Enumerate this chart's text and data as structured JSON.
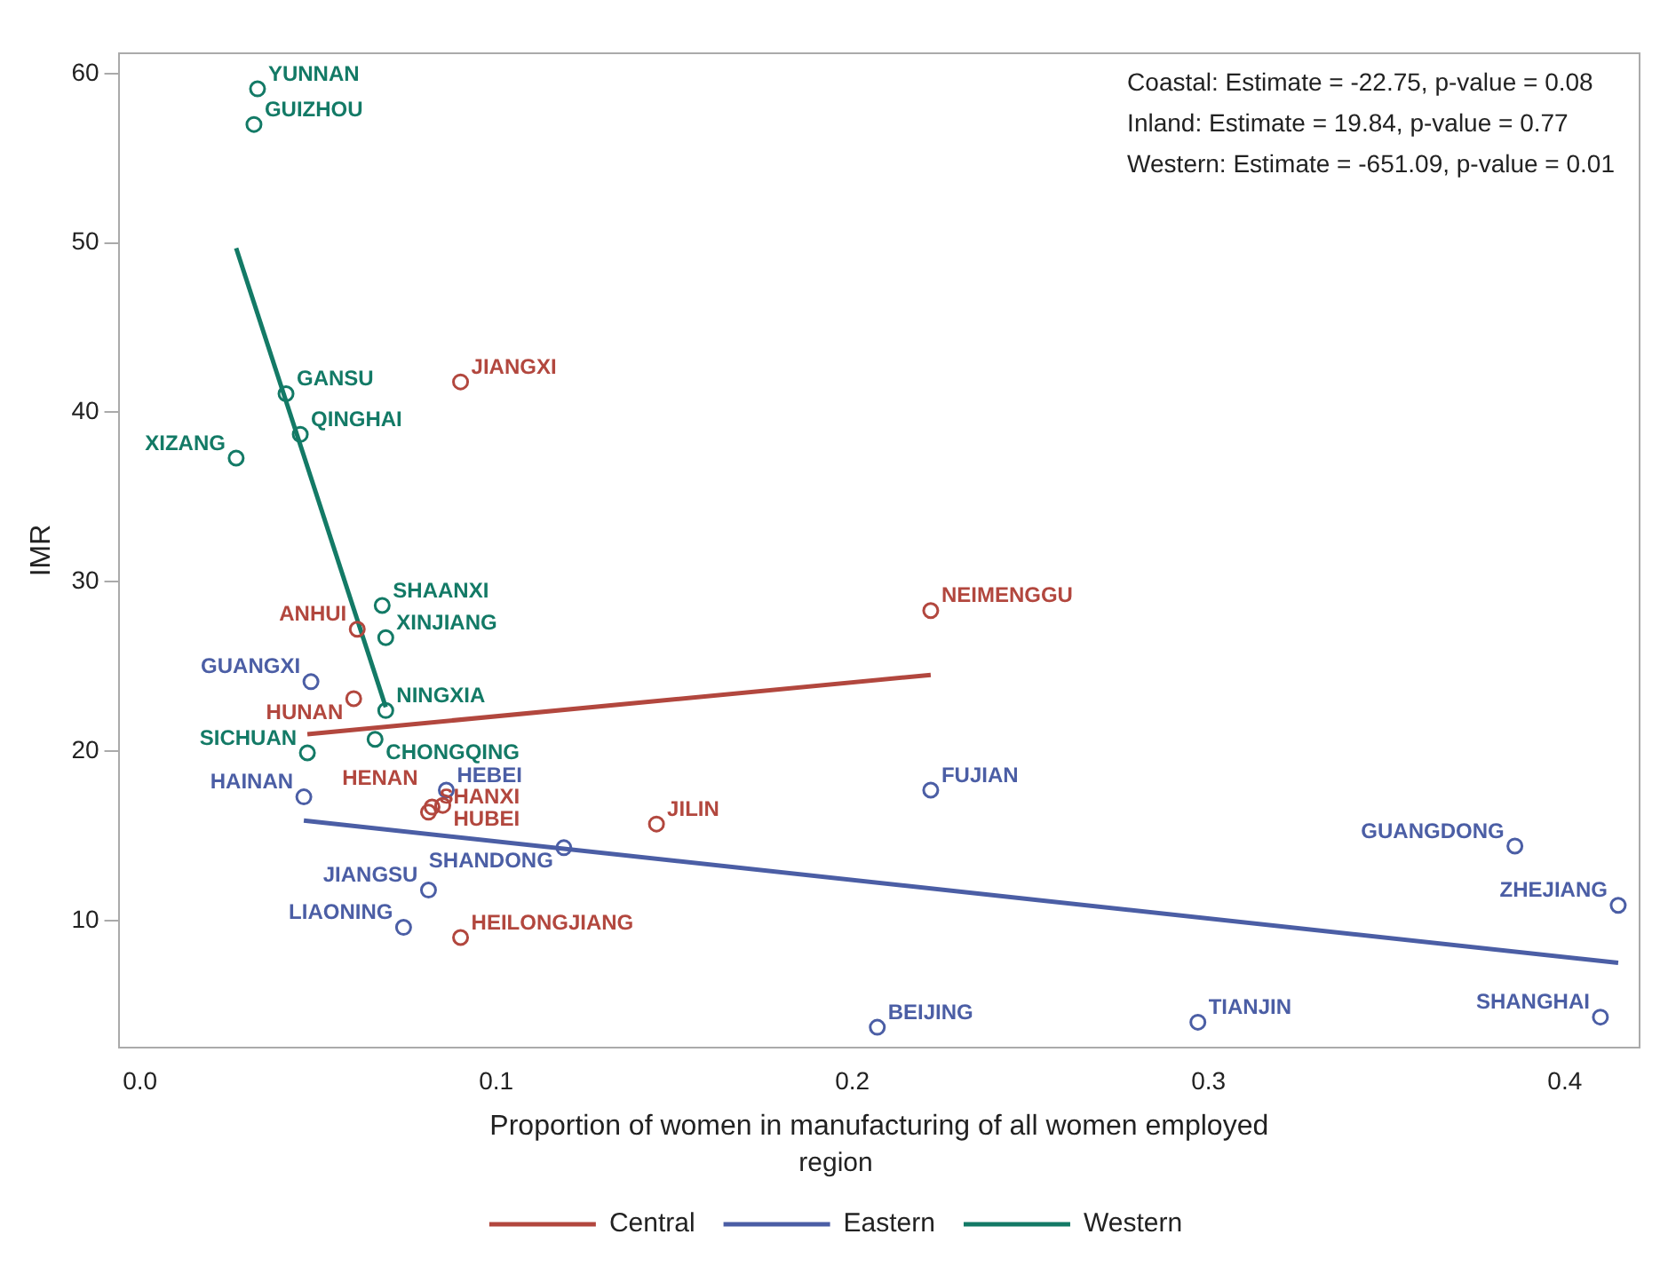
{
  "chart_data": {
    "type": "scatter",
    "xlabel": "Proportion of women in manufacturing of all women employed",
    "ylabel": "IMR",
    "legend_title": "region",
    "legend": "bottom",
    "grid": false,
    "xlim": [
      -0.006,
      0.421
    ],
    "xticks": [
      {
        "value": 0,
        "label": "0.0"
      },
      0.1,
      0.2,
      0.3,
      0.4
    ],
    "ylim": [
      2.5,
      61.2
    ],
    "yticks": [
      10,
      20,
      30,
      40,
      50,
      60
    ],
    "series": [
      {
        "marker": "circle",
        "color": "#b2473e",
        "x": [
          0.09,
          0.061,
          0.06,
          0.082,
          0.081,
          0.085,
          0.145,
          0.09,
          0.222
        ],
        "values": [
          41.8,
          27.2,
          23.1,
          16.7,
          16.4,
          16.8,
          15.7,
          9.0,
          28.3
        ]
      },
      {
        "marker": "circle",
        "color": "#4b5ea5",
        "x": [
          0.048,
          0.046,
          0.086,
          0.119,
          0.081,
          0.074,
          0.222,
          0.386,
          0.415,
          0.41,
          0.297,
          0.207
        ],
        "values": [
          24.1,
          17.3,
          17.7,
          14.3,
          11.8,
          9.6,
          17.7,
          14.4,
          10.9,
          4.3,
          4.0,
          3.7
        ]
      },
      {
        "marker": "circle",
        "color": "#137a66",
        "x": [
          0.033,
          0.032,
          0.041,
          0.045,
          0.027,
          0.068,
          0.069,
          0.069,
          0.047,
          0.066
        ],
        "values": [
          59.1,
          57.0,
          41.1,
          38.7,
          37.3,
          28.6,
          26.7,
          22.4,
          19.9,
          20.7
        ]
      },
      {
        "type": "line",
        "marker": "none",
        "name": "Central",
        "color": "#b2473e",
        "x": [
          0.047,
          0.222
        ],
        "values": [
          21.0,
          24.5
        ]
      },
      {
        "type": "line",
        "marker": "none",
        "name": "Eastern",
        "color": "#4b5ea5",
        "x": [
          0.046,
          0.415
        ],
        "values": [
          15.9,
          7.5
        ]
      },
      {
        "type": "line",
        "marker": "none",
        "name": "Western",
        "color": "#137a66",
        "x": [
          0.027,
          0.069
        ],
        "values": [
          49.7,
          22.6
        ]
      }
    ],
    "annotations": [
      "Coastal: Estimate = -22.75, p-value = 0.08",
      "Inland: Estimate = 19.84, p-value = 0.77",
      "Western: Estimate = -651.09, p-value = 0.01",
      {
        "text": "JIANGXI",
        "x": 0.09,
        "y": 41.8
      },
      {
        "text": "ANHUI",
        "x": 0.061,
        "y": 27.2
      },
      {
        "text": "HUNAN",
        "x": 0.06,
        "y": 23.1
      },
      {
        "text": "HENAN",
        "x": 0.082,
        "y": 16.7
      },
      {
        "text": "SHANXI",
        "x": 0.081,
        "y": 16.4
      },
      {
        "text": "HUBEI",
        "x": 0.085,
        "y": 16.8
      },
      {
        "text": "JILIN",
        "x": 0.145,
        "y": 15.7
      },
      {
        "text": "HEILONGJIANG",
        "x": 0.09,
        "y": 9.0
      },
      {
        "text": "NEIMENGGU",
        "x": 0.222,
        "y": 28.3
      },
      {
        "text": "GUANGXI",
        "x": 0.048,
        "y": 24.1
      },
      {
        "text": "HAINAN",
        "x": 0.046,
        "y": 17.3
      },
      {
        "text": "HEBEI",
        "x": 0.086,
        "y": 17.7
      },
      {
        "text": "SHANDONG",
        "x": 0.119,
        "y": 14.3
      },
      {
        "text": "JIANGSU",
        "x": 0.081,
        "y": 11.8
      },
      {
        "text": "LIAONING",
        "x": 0.074,
        "y": 9.6
      },
      {
        "text": "FUJIAN",
        "x": 0.222,
        "y": 17.7
      },
      {
        "text": "GUANGDONG",
        "x": 0.386,
        "y": 14.4
      },
      {
        "text": "ZHEJIANG",
        "x": 0.415,
        "y": 10.9
      },
      {
        "text": "SHANGHAI",
        "x": 0.41,
        "y": 4.3
      },
      {
        "text": "TIANJIN",
        "x": 0.297,
        "y": 4.0
      },
      {
        "text": "BEIJING",
        "x": 0.207,
        "y": 3.7
      },
      {
        "text": "YUNNAN",
        "x": 0.033,
        "y": 59.1
      },
      {
        "text": "GUIZHOU",
        "x": 0.032,
        "y": 57.0
      },
      {
        "text": "GANSU",
        "x": 0.041,
        "y": 41.1
      },
      {
        "text": "QINGHAI",
        "x": 0.045,
        "y": 38.7
      },
      {
        "text": "XIZANG",
        "x": 0.027,
        "y": 37.3
      },
      {
        "text": "SHAANXI",
        "x": 0.068,
        "y": 28.6
      },
      {
        "text": "XINJIANG",
        "x": 0.069,
        "y": 26.7
      },
      {
        "text": "NINGXIA",
        "x": 0.069,
        "y": 22.4
      },
      {
        "text": "SICHUAN",
        "x": 0.047,
        "y": 19.9
      },
      {
        "text": "CHONGQING",
        "x": 0.066,
        "y": 20.7
      }
    ]
  }
}
